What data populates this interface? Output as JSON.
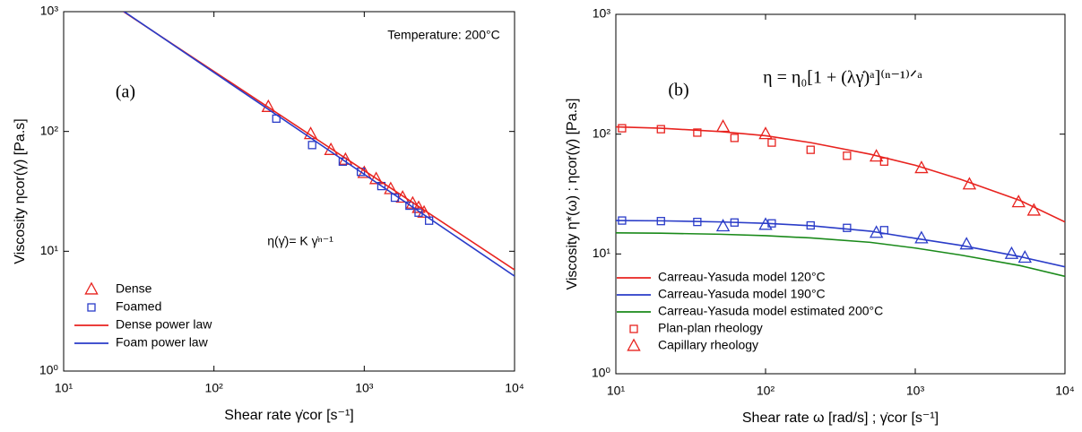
{
  "chart_data": [
    {
      "type": "scatter",
      "xscale": "log",
      "yscale": "log",
      "x_label": "Shear rate γ̇cor [s⁻¹]",
      "y_label": "Viscosity ηcor(γ̇) [Pa.s]",
      "xlim": [
        10,
        10000
      ],
      "ylim": [
        1,
        1000
      ],
      "xticks": [
        {
          "value": 10,
          "label": "10¹"
        },
        {
          "value": 100,
          "label": "10²"
        },
        {
          "value": 1000,
          "label": "10³"
        },
        {
          "value": 10000,
          "label": "10⁴"
        }
      ],
      "yticks": [
        {
          "value": 1,
          "label": "10⁰"
        },
        {
          "value": 10,
          "label": "10¹"
        },
        {
          "value": 100,
          "label": "10²"
        },
        {
          "value": 1000,
          "label": "10³"
        }
      ],
      "legend": "lower left",
      "annotations": [
        "Temperature: 200°C",
        "(a)",
        "η(γ̇)= K γ̇ⁿ⁻¹"
      ],
      "series": [
        {
          "name": "Dense",
          "color": "#e8231f",
          "marker": "triangle",
          "x": [
            230,
            440,
            600,
            750,
            1000,
            1200,
            1500,
            1800,
            2100,
            2300,
            2500
          ],
          "values": [
            160,
            95,
            70,
            58,
            45,
            40,
            33,
            28,
            25,
            23,
            21
          ]
        },
        {
          "name": "Foamed",
          "color": "#2a3cc8",
          "marker": "square",
          "x": [
            260,
            450,
            720,
            950,
            1300,
            1600,
            2000,
            2300,
            2700
          ],
          "values": [
            128,
            77,
            56,
            46,
            35,
            28,
            24,
            21,
            18
          ]
        },
        {
          "name": "Dense power law",
          "color": "#e8231f",
          "marker": "line",
          "x": [
            25,
            10000
          ],
          "values": [
            1000,
            7
          ]
        },
        {
          "name": "Foam power law",
          "color": "#2a3cc8",
          "marker": "line",
          "x": [
            25,
            10000
          ],
          "values": [
            1010,
            6.2
          ]
        }
      ]
    },
    {
      "type": "scatter",
      "xscale": "log",
      "yscale": "log",
      "x_label": "Shear rate ω [rad/s] ; γ̇cor [s⁻¹]",
      "y_label": "Viscosity η*(ω) ; ηcor(γ̇) [Pa.s]",
      "xlim": [
        10,
        10000
      ],
      "ylim": [
        1,
        1000
      ],
      "xticks": [
        {
          "value": 10,
          "label": "10¹"
        },
        {
          "value": 100,
          "label": "10²"
        },
        {
          "value": 1000,
          "label": "10³"
        },
        {
          "value": 10000,
          "label": "10⁴"
        }
      ],
      "yticks": [
        {
          "value": 1,
          "label": "10⁰"
        },
        {
          "value": 10,
          "label": "10¹"
        },
        {
          "value": 100,
          "label": "10²"
        },
        {
          "value": 1000,
          "label": "10³"
        }
      ],
      "legend": "lower left",
      "annotations": [
        "η = η₀[1 + (λγ̇)ᵃ]⁽ⁿ⁻¹⁾ᐟᵃ",
        "(b)"
      ],
      "series": [
        {
          "name": "Carreau-Yasuda model 120°C",
          "color": "#e8231f",
          "marker": "line",
          "x": [
            10,
            20,
            50,
            100,
            200,
            500,
            1000,
            2000,
            5000,
            10000
          ],
          "values": [
            115,
            112,
            105,
            97,
            85,
            68,
            55,
            42,
            28,
            18.5
          ]
        },
        {
          "name": "Carreau-Yasuda model 190°C",
          "color": "#2a3cc8",
          "marker": "line",
          "x": [
            10,
            20,
            50,
            100,
            200,
            500,
            1000,
            2000,
            5000,
            10000
          ],
          "values": [
            19,
            18.9,
            18.5,
            18,
            17.2,
            15.5,
            13.5,
            11.8,
            9.5,
            7.8
          ]
        },
        {
          "name": "Carreau-Yasuda model estimated 200°C",
          "color": "#1a8a1a",
          "marker": "line",
          "x": [
            10,
            20,
            50,
            100,
            200,
            500,
            1000,
            2000,
            5000,
            10000
          ],
          "values": [
            15,
            14.9,
            14.6,
            14.2,
            13.6,
            12.5,
            11.2,
            9.8,
            8,
            6.5
          ]
        },
        {
          "name": "Plan-plan rheology",
          "color": "#e8231f",
          "marker": "square",
          "x": [
            11,
            20,
            35,
            62,
            110,
            200,
            350,
            620
          ],
          "values": [
            112,
            110,
            103,
            93,
            85,
            74,
            66,
            59
          ]
        },
        {
          "name": "Capillary rheology",
          "color": "#e8231f",
          "marker": "triangle",
          "x": [
            52,
            100,
            550,
            1100,
            2300,
            4900,
            6200
          ],
          "values": [
            115,
            100,
            65,
            52,
            38,
            27,
            23
          ]
        },
        {
          "color": "#2a3cc8",
          "marker": "square",
          "x": [
            11,
            20,
            35,
            62,
            110,
            200,
            350,
            620
          ],
          "values": [
            19,
            18.8,
            18.5,
            18.3,
            18,
            17.3,
            16.5,
            15.8
          ]
        },
        {
          "color": "#2a3cc8",
          "marker": "triangle",
          "x": [
            52,
            100,
            550,
            1100,
            2200,
            4400,
            5400
          ],
          "values": [
            17,
            17.5,
            15,
            13.5,
            12,
            10,
            9.3
          ]
        }
      ]
    }
  ]
}
